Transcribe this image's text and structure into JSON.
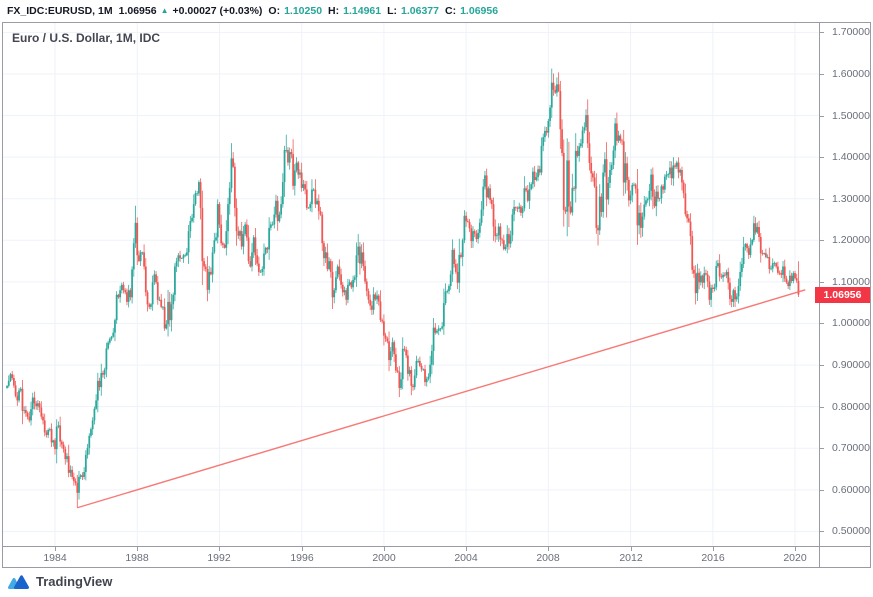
{
  "header": {
    "symbol": "FX_IDC:EURUSD, 1M",
    "last_price": "1.06956",
    "direction": "up",
    "change": "+0.00027 (+0.03%)",
    "ohlc": [
      {
        "label": "O:",
        "value": "1.10250"
      },
      {
        "label": "H:",
        "value": "1.14961"
      },
      {
        "label": "L:",
        "value": "1.06377"
      },
      {
        "label": "C:",
        "value": "1.06956"
      }
    ]
  },
  "chart": {
    "title": "Euro / U.S. Dollar, 1M, IDC",
    "price_label": "1.06956"
  },
  "colors": {
    "up": "#26a69a",
    "down": "#ef5350",
    "trendline": "#f7726e",
    "badge": "#f23645",
    "grid": "#eef2f9",
    "axis_text": "#696e79",
    "frame": "#999ca6"
  },
  "y_axis": {
    "ticks": [
      "1.70000",
      "1.60000",
      "1.50000",
      "1.40000",
      "1.30000",
      "1.20000",
      "1.10000",
      "1.00000",
      "0.90000",
      "0.80000",
      "0.70000",
      "0.60000",
      "0.50000"
    ]
  },
  "x_axis": {
    "ticks": [
      "1984",
      "1988",
      "1992",
      "1996",
      "2000",
      "2004",
      "2008",
      "2012",
      "2016",
      "2020"
    ]
  },
  "branding": {
    "logo_text": "TradingView",
    "logo_icon": "tradingview-mountain-logo"
  },
  "chart_data": {
    "type": "candlestick",
    "interval": "monthly",
    "symbol": "EURUSD (FX_IDC)",
    "title": "Euro / U.S. Dollar, 1M, IDC",
    "start_month": "1981-09",
    "end_month": "2020-03",
    "ylim": [
      0.465,
      1.7225
    ],
    "x_gridline_years": [
      1984,
      1988,
      1992,
      1996,
      2000,
      2004,
      2008,
      2012,
      2016,
      2020
    ],
    "y_gridline_step": 0.1,
    "closes": [
      0.85,
      0.862,
      0.878,
      0.869,
      0.851,
      0.826,
      0.815,
      0.839,
      0.843,
      0.79,
      0.792,
      0.785,
      0.776,
      0.767,
      0.794,
      0.822,
      0.808,
      0.801,
      0.808,
      0.798,
      0.776,
      0.767,
      0.738,
      0.732,
      0.744,
      0.746,
      0.714,
      0.719,
      0.698,
      0.752,
      0.755,
      0.716,
      0.709,
      0.698,
      0.674,
      0.681,
      0.641,
      0.648,
      0.631,
      0.621,
      0.617,
      0.593,
      0.631,
      0.635,
      0.631,
      0.643,
      0.684,
      0.701,
      0.73,
      0.746,
      0.767,
      0.795,
      0.815,
      0.862,
      0.847,
      0.881,
      0.877,
      0.889,
      0.94,
      0.954,
      0.963,
      0.968,
      0.978,
      1.008,
      1.069,
      1.063,
      1.08,
      1.093,
      1.08,
      1.075,
      1.052,
      1.08,
      1.063,
      1.13,
      1.193,
      1.242,
      1.164,
      1.15,
      1.171,
      1.171,
      1.137,
      1.075,
      1.046,
      1.04,
      1.046,
      1.099,
      1.118,
      1.099,
      1.057,
      1.057,
      1.04,
      1.04,
      0.988,
      0.998,
      1.052,
      1.008,
      1.046,
      1.069,
      1.137,
      1.15,
      1.164,
      1.157,
      1.157,
      1.164,
      1.164,
      1.171,
      1.222,
      1.246,
      1.254,
      1.287,
      1.313,
      1.313,
      1.34,
      1.278,
      1.15,
      1.137,
      1.131,
      1.081,
      1.124,
      1.118,
      1.171,
      1.2,
      1.207,
      1.287,
      1.238,
      1.193,
      1.189,
      1.182,
      1.222,
      1.287,
      1.326,
      1.397,
      1.377,
      1.278,
      1.222,
      1.211,
      1.222,
      1.185,
      1.215,
      1.238,
      1.207,
      1.15,
      1.137,
      1.171,
      1.207,
      1.164,
      1.144,
      1.124,
      1.124,
      1.131,
      1.168,
      1.182,
      1.178,
      1.23,
      1.238,
      1.238,
      1.262,
      1.295,
      1.246,
      1.262,
      1.287,
      1.34,
      1.417,
      1.417,
      1.387,
      1.412,
      1.407,
      1.331,
      1.368,
      1.387,
      1.358,
      1.363,
      1.326,
      1.335,
      1.322,
      1.278,
      1.278,
      1.287,
      1.322,
      1.322,
      1.287,
      1.295,
      1.27,
      1.262,
      1.193,
      1.157,
      1.171,
      1.131,
      1.15,
      1.124,
      1.063,
      1.08,
      1.111,
      1.137,
      1.118,
      1.093,
      1.075,
      1.08,
      1.057,
      1.093,
      1.099,
      1.087,
      1.105,
      1.111,
      1.164,
      1.185,
      1.144,
      1.171,
      1.138,
      1.101,
      1.078,
      1.057,
      1.043,
      1.033,
      1.07,
      1.058,
      1.067,
      1.053,
      1.008,
      1.005,
      0.971,
      0.964,
      0.957,
      0.912,
      0.933,
      0.955,
      0.926,
      0.887,
      0.884,
      0.845,
      0.866,
      0.939,
      0.937,
      0.923,
      0.879,
      0.888,
      0.85,
      0.847,
      0.875,
      0.91,
      0.91,
      0.898,
      0.89,
      0.89,
      0.859,
      0.867,
      0.872,
      0.901,
      0.934,
      0.99,
      0.978,
      0.982,
      0.988,
      0.988,
      0.993,
      1.049,
      1.077,
      1.078,
      1.09,
      1.118,
      1.177,
      1.143,
      1.124,
      1.098,
      1.165,
      1.16,
      1.2,
      1.259,
      1.246,
      1.244,
      1.229,
      1.198,
      1.222,
      1.216,
      1.203,
      1.218,
      1.242,
      1.274,
      1.329,
      1.356,
      1.303,
      1.325,
      1.297,
      1.287,
      1.233,
      1.21,
      1.212,
      1.233,
      1.202,
      1.2,
      1.179,
      1.184,
      1.215,
      1.192,
      1.212,
      1.262,
      1.28,
      1.278,
      1.276,
      1.281,
      1.266,
      1.277,
      1.325,
      1.32,
      1.295,
      1.323,
      1.335,
      1.365,
      1.345,
      1.352,
      1.371,
      1.363,
      1.427,
      1.448,
      1.463,
      1.459,
      1.487,
      1.519,
      1.579,
      1.562,
      1.555,
      1.575,
      1.559,
      1.467,
      1.41,
      1.273,
      1.269,
      1.392,
      1.281,
      1.267,
      1.326,
      1.324,
      1.415,
      1.403,
      1.426,
      1.433,
      1.464,
      1.472,
      1.501,
      1.433,
      1.386,
      1.361,
      1.351,
      1.33,
      1.23,
      1.224,
      1.305,
      1.268,
      1.363,
      1.395,
      1.298,
      1.338,
      1.369,
      1.381,
      1.416,
      1.481,
      1.439,
      1.452,
      1.44,
      1.438,
      1.339,
      1.385,
      1.345,
      1.296,
      1.308,
      1.333,
      1.334,
      1.324,
      1.236,
      1.266,
      1.23,
      1.257,
      1.286,
      1.296,
      1.299,
      1.319,
      1.358,
      1.305,
      1.282,
      1.317,
      1.3,
      1.301,
      1.33,
      1.322,
      1.353,
      1.358,
      1.359,
      1.375,
      1.349,
      1.38,
      1.377,
      1.387,
      1.363,
      1.369,
      1.339,
      1.313,
      1.263,
      1.253,
      1.245,
      1.21,
      1.129,
      1.12,
      1.073,
      1.122,
      1.099,
      1.115,
      1.098,
      1.121,
      1.118,
      1.101,
      1.057,
      1.086,
      1.083,
      1.087,
      1.138,
      1.145,
      1.113,
      1.111,
      1.117,
      1.116,
      1.124,
      1.098,
      1.059,
      1.052,
      1.08,
      1.058,
      1.065,
      1.09,
      1.124,
      1.143,
      1.184,
      1.191,
      1.181,
      1.165,
      1.19,
      1.201,
      1.241,
      1.219,
      1.232,
      1.208,
      1.169,
      1.168,
      1.169,
      1.16,
      1.16,
      1.131,
      1.132,
      1.145,
      1.145,
      1.137,
      1.122,
      1.121,
      1.117,
      1.137,
      1.108,
      1.099,
      1.09,
      1.115,
      1.102,
      1.121,
      1.109,
      1.103,
      1.07
    ],
    "last_candle": {
      "open": 1.1025,
      "high": 1.14961,
      "low": 1.06377,
      "close": 1.06956
    },
    "wick_overrides": {
      "41": {
        "low": 0.557
      },
      "75": {
        "high": 1.283
      },
      "113": {
        "high": 1.349
      },
      "132": {
        "high": 1.412
      },
      "163": {
        "high": 1.454
      },
      "205": {
        "high": 1.215
      },
      "229": {
        "low": 0.823
      },
      "279": {
        "high": 1.3666
      },
      "319": {
        "high": 1.601
      },
      "322": {
        "high": 1.6038
      },
      "325": {
        "low": 1.233
      },
      "345": {
        "low": 1.1876
      },
      "355": {
        "high": 1.494
      },
      "370": {
        "low": 1.206
      },
      "392": {
        "high": 1.3993
      },
      "402": {
        "low": 1.0458
      },
      "423": {
        "low": 1.039
      },
      "437": {
        "high": 1.2555
      }
    },
    "trendline": {
      "from_index": 41,
      "from_price": 0.557,
      "to_index": 466,
      "to_price": 1.081
    }
  }
}
